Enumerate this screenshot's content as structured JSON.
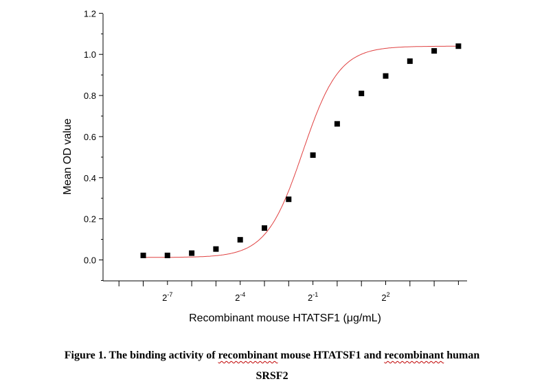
{
  "chart_data": {
    "type": "scatter",
    "xlabel": "Recombinant mouse HTATSF1 (μg/mL)",
    "ylabel": "Mean OD value",
    "x_scale": "log2",
    "ylim": [
      -0.1,
      1.2
    ],
    "y_ticks": [
      0.0,
      0.2,
      0.4,
      0.6,
      0.8,
      1.0,
      1.2
    ],
    "y_tick_labels": [
      "0.0",
      "0.2",
      "0.4",
      "0.6",
      "0.8",
      "1.0",
      "1.2"
    ],
    "x_tick_labels": [
      {
        "base": "2",
        "exp": "-7"
      },
      {
        "base": "2",
        "exp": "-4"
      },
      {
        "base": "2",
        "exp": "-1"
      },
      {
        "base": "2",
        "exp": "2"
      }
    ],
    "grid": false,
    "series": [
      {
        "marker": "square",
        "color": "#000000",
        "x": [
          0.00391,
          0.00781,
          0.01563,
          0.03125,
          0.0625,
          0.125,
          0.25,
          0.5,
          1,
          2,
          4,
          8,
          16,
          32
        ],
        "y": [
          0.022,
          0.022,
          0.033,
          0.053,
          0.098,
          0.155,
          0.295,
          0.51,
          0.662,
          0.81,
          0.895,
          0.967,
          1.017,
          1.04
        ]
      },
      {
        "type": "line",
        "color": "#e04040",
        "fit": "four-parameter logistic"
      }
    ]
  },
  "caption": {
    "part1": "Figure 1. The binding activity of ",
    "part2": "recombinant",
    "part3": " mouse HTATSF1 and ",
    "part4": "recombinant",
    "part5": " human",
    "line2": "SRSF2"
  }
}
